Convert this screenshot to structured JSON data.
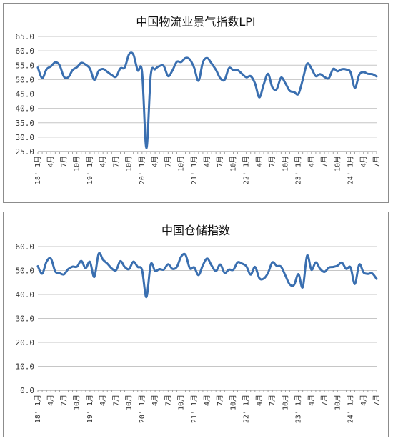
{
  "chart_data": [
    {
      "type": "line",
      "title": "中国物流业景气指数LPI",
      "ylim": [
        25,
        65
      ],
      "yticks": [
        "25.0",
        "30.0",
        "35.0",
        "40.0",
        "45.0",
        "50.0",
        "55.0",
        "60.0",
        "65.0"
      ],
      "grid": true,
      "legend": "none",
      "line_color": "#3a6fb0",
      "xtick_labels": [
        {
          "i": 0,
          "label": "18' 1月"
        },
        {
          "i": 3,
          "label": "4月"
        },
        {
          "i": 6,
          "label": "7月"
        },
        {
          "i": 9,
          "label": "10月"
        },
        {
          "i": 12,
          "label": "19' 1月"
        },
        {
          "i": 15,
          "label": "4月"
        },
        {
          "i": 18,
          "label": "7月"
        },
        {
          "i": 21,
          "label": "10月"
        },
        {
          "i": 24,
          "label": "20' 1月"
        },
        {
          "i": 27,
          "label": "4月"
        },
        {
          "i": 30,
          "label": "7月"
        },
        {
          "i": 33,
          "label": "10月"
        },
        {
          "i": 36,
          "label": "21' 1月"
        },
        {
          "i": 39,
          "label": "4月"
        },
        {
          "i": 42,
          "label": "7月"
        },
        {
          "i": 45,
          "label": "10月"
        },
        {
          "i": 48,
          "label": "22' 1月"
        },
        {
          "i": 51,
          "label": "4月"
        },
        {
          "i": 54,
          "label": "7月"
        },
        {
          "i": 57,
          "label": "10月"
        },
        {
          "i": 60,
          "label": "23' 1月"
        },
        {
          "i": 63,
          "label": "4月"
        },
        {
          "i": 66,
          "label": "7月"
        },
        {
          "i": 69,
          "label": "10月"
        },
        {
          "i": 72,
          "label": "24' 1月"
        },
        {
          "i": 75,
          "label": "4月"
        },
        {
          "i": 78,
          "label": "7月"
        }
      ],
      "values": [
        54.2,
        50.5,
        53.6,
        54.6,
        56.0,
        55.0,
        51.0,
        50.8,
        53.3,
        54.3,
        55.8,
        55.2,
        53.8,
        49.9,
        53.0,
        53.7,
        52.7,
        51.6,
        51.0,
        53.9,
        54.2,
        58.8,
        58.7,
        53.2,
        52.7,
        26.2,
        51.5,
        53.6,
        54.7,
        54.7,
        51.2,
        53.2,
        56.2,
        56.1,
        57.5,
        57.0,
        54.1,
        49.6,
        56.0,
        57.5,
        55.6,
        53.4,
        50.5,
        49.9,
        54.0,
        53.3,
        53.3,
        52.0,
        50.8,
        51.2,
        48.7,
        43.8,
        48.3,
        52.0,
        47.3,
        46.7,
        50.7,
        48.7,
        46.1,
        45.7,
        45.0,
        50.0,
        55.5,
        53.9,
        51.2,
        51.9,
        50.9,
        50.5,
        53.7,
        52.9,
        53.6,
        53.5,
        52.6,
        47.1,
        51.7,
        52.6,
        52.0,
        51.9,
        51.1
      ]
    },
    {
      "type": "line",
      "title": "中国仓储指数",
      "ylim": [
        0,
        60
      ],
      "yticks": [
        "0.0",
        "10.0",
        "20.0",
        "30.0",
        "40.0",
        "50.0",
        "60.0"
      ],
      "grid": true,
      "legend": "none",
      "line_color": "#3a6fb0",
      "xtick_labels": [
        {
          "i": 0,
          "label": "18' 1月"
        },
        {
          "i": 3,
          "label": "4月"
        },
        {
          "i": 6,
          "label": "7月"
        },
        {
          "i": 9,
          "label": "10月"
        },
        {
          "i": 12,
          "label": "19' 1月"
        },
        {
          "i": 15,
          "label": "4月"
        },
        {
          "i": 18,
          "label": "7月"
        },
        {
          "i": 21,
          "label": "10月"
        },
        {
          "i": 24,
          "label": "20' 1月"
        },
        {
          "i": 27,
          "label": "4月"
        },
        {
          "i": 30,
          "label": "7月"
        },
        {
          "i": 33,
          "label": "10月"
        },
        {
          "i": 36,
          "label": "21' 1月"
        },
        {
          "i": 39,
          "label": "4月"
        },
        {
          "i": 42,
          "label": "7月"
        },
        {
          "i": 45,
          "label": "10月"
        },
        {
          "i": 48,
          "label": "22' 1月"
        },
        {
          "i": 51,
          "label": "4月"
        },
        {
          "i": 54,
          "label": "7月"
        },
        {
          "i": 57,
          "label": "10月"
        },
        {
          "i": 60,
          "label": "23' 1月"
        },
        {
          "i": 63,
          "label": "4月"
        },
        {
          "i": 66,
          "label": "7月"
        },
        {
          "i": 69,
          "label": "10月"
        },
        {
          "i": 72,
          "label": "24' 1月"
        },
        {
          "i": 75,
          "label": "4月"
        },
        {
          "i": 78,
          "label": "7月"
        }
      ],
      "values": [
        51.8,
        48.7,
        53.7,
        55.0,
        49.6,
        48.9,
        48.4,
        50.6,
        51.6,
        51.6,
        54.0,
        51.0,
        53.6,
        47.3,
        57.0,
        54.5,
        52.9,
        50.9,
        50.1,
        53.9,
        51.5,
        50.6,
        53.7,
        51.5,
        50.2,
        38.9,
        52.6,
        49.8,
        50.6,
        50.4,
        52.6,
        50.7,
        51.5,
        55.8,
        56.6,
        50.9,
        51.3,
        48.1,
        52.2,
        55.0,
        52.1,
        49.8,
        52.5,
        49.0,
        50.4,
        50.3,
        53.4,
        52.9,
        51.8,
        48.3,
        51.5,
        46.8,
        46.6,
        49.0,
        53.4,
        51.9,
        51.6,
        47.9,
        44.2,
        44.0,
        48.5,
        43.0,
        56.2,
        50.3,
        53.4,
        50.7,
        49.4,
        51.2,
        51.5,
        52.0,
        53.3,
        50.7,
        51.3,
        44.4,
        52.5,
        49.2,
        48.6,
        48.8,
        46.5
      ]
    }
  ]
}
